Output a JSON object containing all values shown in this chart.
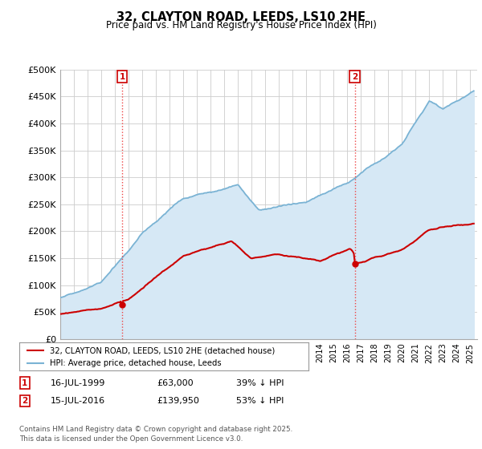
{
  "title": "32, CLAYTON ROAD, LEEDS, LS10 2HE",
  "subtitle": "Price paid vs. HM Land Registry's House Price Index (HPI)",
  "ylim": [
    0,
    500000
  ],
  "yticks": [
    0,
    50000,
    100000,
    150000,
    200000,
    250000,
    300000,
    350000,
    400000,
    450000,
    500000
  ],
  "ytick_labels": [
    "£0",
    "£50K",
    "£100K",
    "£150K",
    "£200K",
    "£250K",
    "£300K",
    "£350K",
    "£400K",
    "£450K",
    "£500K"
  ],
  "hpi_color": "#7ab3d4",
  "hpi_fill_color": "#d6e8f5",
  "price_color": "#cc0000",
  "vline_color": "#ee4444",
  "purchase1_date": 1999.54,
  "purchase1_price": 63000,
  "purchase2_date": 2016.54,
  "purchase2_price": 139950,
  "legend_label_price": "32, CLAYTON ROAD, LEEDS, LS10 2HE (detached house)",
  "legend_label_hpi": "HPI: Average price, detached house, Leeds",
  "note1_label": "1",
  "note1_date": "16-JUL-1999",
  "note1_price": "£63,000",
  "note1_pct": "39% ↓ HPI",
  "note2_label": "2",
  "note2_date": "15-JUL-2016",
  "note2_price": "£139,950",
  "note2_pct": "53% ↓ HPI",
  "copyright": "Contains HM Land Registry data © Crown copyright and database right 2025.\nThis data is licensed under the Open Government Licence v3.0.",
  "background_color": "#ffffff",
  "grid_color": "#cccccc"
}
